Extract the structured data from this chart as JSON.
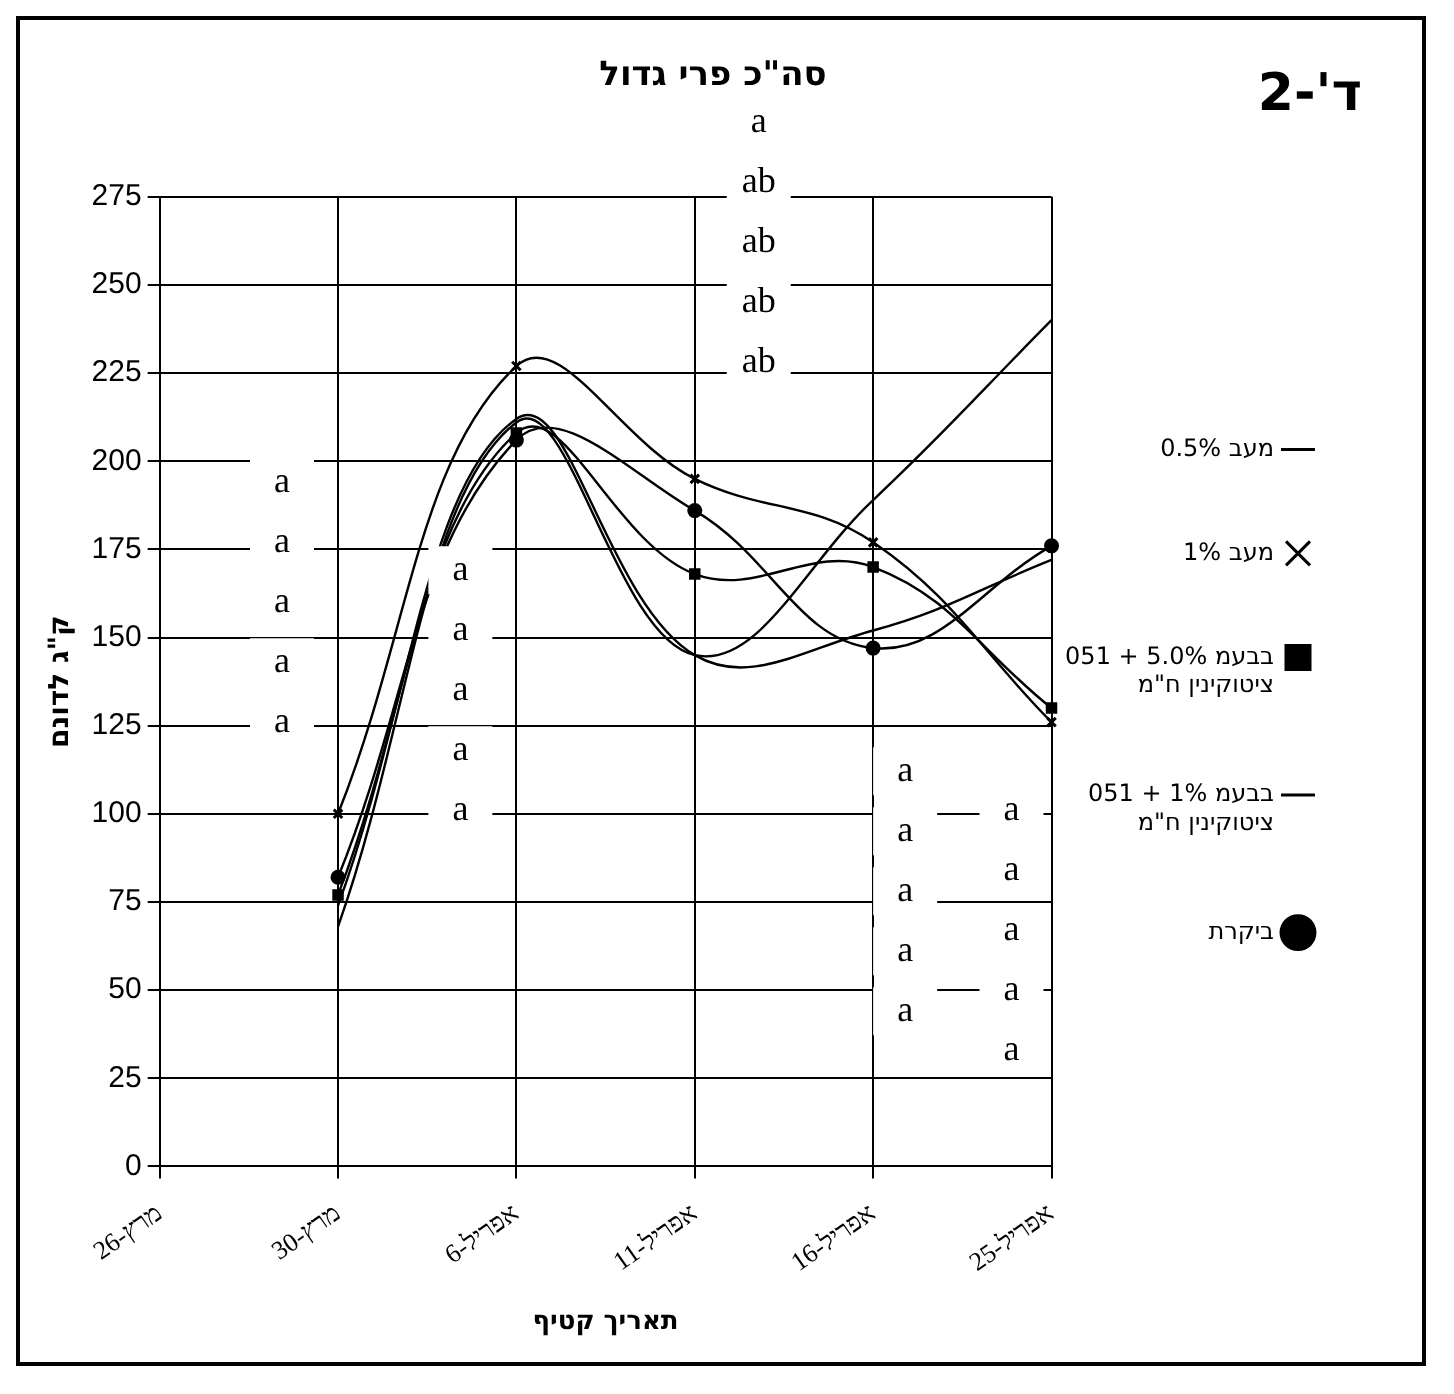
{
  "chart_data": {
    "type": "line",
    "title": "סה\"כ פרי גדול",
    "xlabel": "תאריך קטיף",
    "ylabel": "ק\"ג לדונם",
    "categories": [
      "26-מרץ",
      "30-מרץ",
      "6-אפריל",
      "11-אפריל",
      "16-אפריל",
      "25-אפריל"
    ],
    "series": [
      {
        "name": "מעב 0.5%",
        "color": "#000000",
        "marker": "none",
        "values": [
          null,
          68,
          211,
          145,
          189,
          240
        ]
      },
      {
        "name": "מעב 1%",
        "color": "#000000",
        "marker": "cross",
        "values": [
          null,
          100,
          227,
          195,
          177,
          126
        ]
      },
      {
        "name": "בבעמ 5.0% + 051 ציטוקינין ח\"מ",
        "color": "#000000",
        "marker": "square",
        "values": [
          null,
          77,
          208,
          168,
          170,
          130
        ]
      },
      {
        "name": "בבעמ 1% + 051 ציטוקינין ח\"מ",
        "color": "#000000",
        "marker": "none",
        "values": [
          null,
          74,
          212,
          145,
          152,
          172
        ]
      },
      {
        "name": "ביקרת",
        "color": "#000000",
        "marker": "circle",
        "values": [
          null,
          82,
          206,
          186,
          147,
          176
        ]
      }
    ],
    "annotations": [
      "ד'-2",
      "a\na\na\na\na",
      "a\na\na\na\na",
      "a\nab\nab\nab\nab",
      "a\na\na\na\na",
      "a\na\na\na\na"
    ],
    "ylim": [
      0,
      275
    ],
    "yticks": [
      0,
      25,
      50,
      75,
      100,
      125,
      150,
      175,
      200,
      225,
      250,
      275
    ],
    "grid": true,
    "legend": "right",
    "line_style": "solid"
  }
}
